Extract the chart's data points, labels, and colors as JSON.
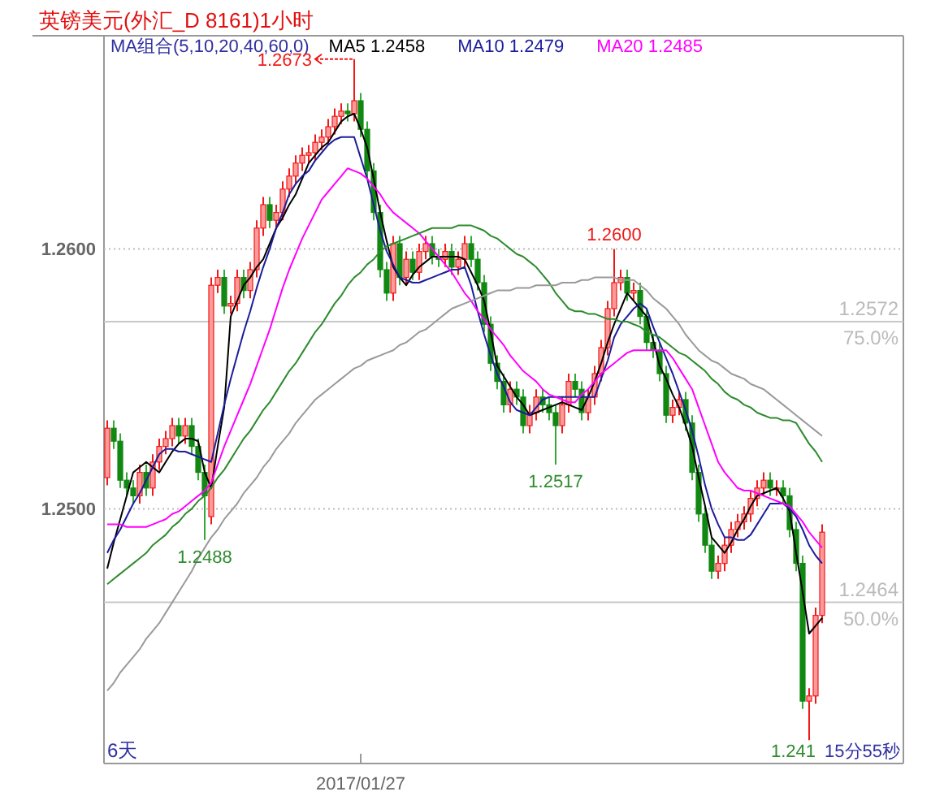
{
  "chart_data": {
    "type": "candlestick",
    "title": "英镑美元(外汇_D 8161)1小时",
    "legend_title": "MA组合(5,10,20,40,60,0)",
    "legend": "top",
    "grid": "y",
    "ylim": [
      1.2402,
      1.2682
    ],
    "yticks": [
      {
        "value": 1.26,
        "label": "1.2600"
      },
      {
        "value": 1.25,
        "label": "1.2500"
      }
    ],
    "categories": [
      null,
      null,
      null,
      null,
      null,
      null,
      null,
      null,
      null,
      null,
      null,
      null,
      null,
      null,
      null,
      null,
      null,
      null,
      null,
      null,
      null,
      null,
      null,
      null,
      null,
      null,
      null,
      null,
      null,
      null,
      null,
      null,
      null,
      null,
      null,
      null,
      null,
      null,
      null,
      "2017/01/27",
      null,
      null,
      null,
      null,
      null,
      null,
      null,
      null,
      null,
      null,
      null,
      null,
      null,
      null,
      null,
      null,
      null,
      null,
      null,
      null,
      null,
      null,
      null,
      null,
      null,
      null,
      null,
      null,
      null,
      null,
      null,
      null,
      null,
      null,
      null,
      null,
      null,
      null,
      null,
      null,
      null,
      null,
      null,
      null,
      null,
      null,
      null,
      null,
      null,
      null,
      null,
      null,
      null,
      null,
      null,
      null,
      null,
      null,
      null,
      null,
      null,
      null,
      null,
      null,
      null,
      null,
      null,
      null,
      null,
      null,
      null
    ],
    "ohlc": [
      [
        1.2512,
        1.2534,
        1.2509,
        1.2531
      ],
      [
        1.2531,
        1.2534,
        1.2523,
        1.2526
      ],
      [
        1.2526,
        1.2529,
        1.2508,
        1.2511
      ],
      [
        1.2511,
        1.2514,
        1.2505,
        1.2508
      ],
      [
        1.2508,
        1.2511,
        1.2502,
        1.2505
      ],
      [
        1.2505,
        1.2517,
        1.2502,
        1.2514
      ],
      [
        1.2514,
        1.2517,
        1.2505,
        1.2508
      ],
      [
        1.2508,
        1.2521,
        1.2505,
        1.2518
      ],
      [
        1.2518,
        1.2527,
        1.2515,
        1.2524
      ],
      [
        1.2524,
        1.253,
        1.2521,
        1.2527
      ],
      [
        1.2527,
        1.2535,
        1.2524,
        1.2532
      ],
      [
        1.2532,
        1.2535,
        1.2525,
        1.2528
      ],
      [
        1.2528,
        1.2535,
        1.2525,
        1.2532
      ],
      [
        1.2532,
        1.2535,
        1.2521,
        1.2524
      ],
      [
        1.2524,
        1.2527,
        1.2511,
        1.2514
      ],
      [
        1.2514,
        1.2517,
        1.2488,
        1.2505
      ],
      [
        1.2497,
        1.2589,
        1.2494,
        1.2586
      ],
      [
        1.2586,
        1.2592,
        1.2583,
        1.2589
      ],
      [
        1.2589,
        1.2592,
        1.2575,
        1.2578
      ],
      [
        1.2578,
        1.2582,
        1.2575,
        1.2579
      ],
      [
        1.2579,
        1.2592,
        1.2576,
        1.2589
      ],
      [
        1.2589,
        1.2592,
        1.2581,
        1.2584
      ],
      [
        1.2584,
        1.2595,
        1.2581,
        1.2592
      ],
      [
        1.2592,
        1.2611,
        1.2589,
        1.2608
      ],
      [
        1.2608,
        1.262,
        1.2605,
        1.2617
      ],
      [
        1.2617,
        1.262,
        1.2608,
        1.2611
      ],
      [
        1.2611,
        1.2617,
        1.2608,
        1.2614
      ],
      [
        1.2614,
        1.2626,
        1.2611,
        1.2623
      ],
      [
        1.2623,
        1.2631,
        1.262,
        1.2628
      ],
      [
        1.2628,
        1.2636,
        1.2625,
        1.2633
      ],
      [
        1.2633,
        1.2639,
        1.263,
        1.2636
      ],
      [
        1.2636,
        1.264,
        1.2633,
        1.2637
      ],
      [
        1.2637,
        1.2644,
        1.2634,
        1.2641
      ],
      [
        1.2641,
        1.2646,
        1.2638,
        1.2643
      ],
      [
        1.2643,
        1.265,
        1.264,
        1.2647
      ],
      [
        1.2647,
        1.2654,
        1.2644,
        1.2651
      ],
      [
        1.2651,
        1.2656,
        1.2648,
        1.2653
      ],
      [
        1.2653,
        1.2656,
        1.2649,
        1.2652
      ],
      [
        1.2652,
        1.2673,
        1.2649,
        1.2657
      ],
      [
        1.2657,
        1.266,
        1.2643,
        1.2646
      ],
      [
        1.2646,
        1.2649,
        1.2627,
        1.263
      ],
      [
        1.263,
        1.2633,
        1.2611,
        1.2614
      ],
      [
        1.2614,
        1.2617,
        1.2589,
        1.2592
      ],
      [
        1.2592,
        1.2595,
        1.258,
        1.2583
      ],
      [
        1.2583,
        1.2605,
        1.258,
        1.2602
      ],
      [
        1.2602,
        1.2605,
        1.2586,
        1.2589
      ],
      [
        1.2589,
        1.2599,
        1.2586,
        1.2596
      ],
      [
        1.2596,
        1.2599,
        1.2588,
        1.2591
      ],
      [
        1.2591,
        1.2602,
        1.2588,
        1.2599
      ],
      [
        1.2599,
        1.2605,
        1.2596,
        1.2602
      ],
      [
        1.2602,
        1.2605,
        1.2594,
        1.2597
      ],
      [
        1.2597,
        1.26,
        1.2593,
        1.2596
      ],
      [
        1.2596,
        1.2602,
        1.2593,
        1.2599
      ],
      [
        1.2599,
        1.2602,
        1.259,
        1.2593
      ],
      [
        1.2593,
        1.2599,
        1.259,
        1.2596
      ],
      [
        1.2596,
        1.2605,
        1.2593,
        1.2602
      ],
      [
        1.2602,
        1.2605,
        1.2593,
        1.2596
      ],
      [
        1.2596,
        1.2599,
        1.2584,
        1.2587
      ],
      [
        1.2587,
        1.259,
        1.2568,
        1.2571
      ],
      [
        1.2571,
        1.2574,
        1.2553,
        1.2556
      ],
      [
        1.2556,
        1.2559,
        1.2546,
        1.2549
      ],
      [
        1.2549,
        1.2552,
        1.2537,
        1.254
      ],
      [
        1.254,
        1.2549,
        1.2537,
        1.2546
      ],
      [
        1.2546,
        1.2549,
        1.254,
        1.2543
      ],
      [
        1.2543,
        1.2546,
        1.2529,
        1.2532
      ],
      [
        1.2532,
        1.254,
        1.2529,
        1.2537
      ],
      [
        1.2537,
        1.2546,
        1.2534,
        1.2543
      ],
      [
        1.2543,
        1.2546,
        1.2537,
        1.254
      ],
      [
        1.254,
        1.2543,
        1.2534,
        1.2537
      ],
      [
        1.2537,
        1.254,
        1.2517,
        1.2532
      ],
      [
        1.2532,
        1.2543,
        1.2529,
        1.254
      ],
      [
        1.254,
        1.2552,
        1.2537,
        1.2549
      ],
      [
        1.2549,
        1.2552,
        1.2543,
        1.2546
      ],
      [
        1.2546,
        1.2549,
        1.2534,
        1.2537
      ],
      [
        1.2537,
        1.2546,
        1.2534,
        1.2543
      ],
      [
        1.2543,
        1.2555,
        1.254,
        1.2552
      ],
      [
        1.2552,
        1.2565,
        1.2549,
        1.2562
      ],
      [
        1.2562,
        1.258,
        1.2559,
        1.2577
      ],
      [
        1.2577,
        1.26,
        1.2574,
        1.2587
      ],
      [
        1.2587,
        1.2592,
        1.2584,
        1.2589
      ],
      [
        1.2589,
        1.2592,
        1.258,
        1.2583
      ],
      [
        1.2583,
        1.2587,
        1.258,
        1.2584
      ],
      [
        1.2584,
        1.2587,
        1.2571,
        1.2574
      ],
      [
        1.2574,
        1.2577,
        1.2561,
        1.2564
      ],
      [
        1.2564,
        1.2567,
        1.2558,
        1.2561
      ],
      [
        1.2561,
        1.2564,
        1.2549,
        1.2552
      ],
      [
        1.2552,
        1.2555,
        1.2533,
        1.2536
      ],
      [
        1.2536,
        1.2542,
        1.2533,
        1.2539
      ],
      [
        1.2539,
        1.2545,
        1.2536,
        1.2542
      ],
      [
        1.2542,
        1.2545,
        1.253,
        1.2533
      ],
      [
        1.2533,
        1.2536,
        1.2511,
        1.2514
      ],
      [
        1.2514,
        1.2517,
        1.2495,
        1.2498
      ],
      [
        1.2498,
        1.2501,
        1.2483,
        1.2486
      ],
      [
        1.2486,
        1.2489,
        1.2473,
        1.2476
      ],
      [
        1.2476,
        1.2482,
        1.2473,
        1.2479
      ],
      [
        1.2479,
        1.2489,
        1.2476,
        1.2486
      ],
      [
        1.2486,
        1.2495,
        1.2483,
        1.2492
      ],
      [
        1.2492,
        1.2498,
        1.2489,
        1.2495
      ],
      [
        1.2495,
        1.2501,
        1.2492,
        1.2498
      ],
      [
        1.2498,
        1.2507,
        1.2495,
        1.2504
      ],
      [
        1.2504,
        1.2511,
        1.2501,
        1.2508
      ],
      [
        1.2508,
        1.2514,
        1.2505,
        1.2511
      ],
      [
        1.2511,
        1.2514,
        1.2505,
        1.2508
      ],
      [
        1.2508,
        1.2511,
        1.2505,
        1.2508
      ],
      [
        1.2508,
        1.2511,
        1.2502,
        1.2505
      ],
      [
        1.2505,
        1.2508,
        1.2489,
        1.2492
      ],
      [
        1.2492,
        1.2495,
        1.2476,
        1.2479
      ],
      [
        1.2479,
        1.2482,
        1.2423,
        1.2426
      ],
      [
        1.2426,
        1.2431,
        1.2411,
        1.2428
      ],
      [
        1.2428,
        1.2462,
        1.2425,
        1.2459
      ],
      [
        1.2459,
        1.2494,
        1.2456,
        1.2491
      ]
    ],
    "series": [
      {
        "type": "line",
        "name": "MA5 1.2458",
        "color": "#000000",
        "values": [
          1.2477,
          1.2487,
          1.2496,
          1.2505,
          1.2514,
          1.2516,
          1.2518,
          1.2516,
          1.2514,
          1.2518,
          1.2522,
          1.2525,
          1.2527,
          1.2527,
          1.2526,
          1.2514,
          1.2508,
          1.2524,
          1.2539,
          1.2574,
          1.258,
          1.2586,
          1.2589,
          1.2593,
          1.2596,
          1.2602,
          1.2608,
          1.2612,
          1.2617,
          1.2621,
          1.2627,
          1.2633,
          1.2636,
          1.2639,
          1.2641,
          1.2645,
          1.2649,
          1.2651,
          1.2652,
          1.2646,
          1.2639,
          1.2627,
          1.2614,
          1.2603,
          1.2593,
          1.2589,
          1.2586,
          1.259,
          1.2593,
          1.2595,
          1.2597,
          1.2597,
          1.2597,
          1.2597,
          1.2597,
          1.2596,
          1.2591,
          1.2586,
          1.258,
          1.2568,
          1.2555,
          1.2551,
          1.2547,
          1.2543,
          1.254,
          1.2536,
          1.2537,
          1.2538,
          1.2539,
          1.254,
          1.2541,
          1.254,
          1.2539,
          1.2538,
          1.2543,
          1.2549,
          1.2556,
          1.2564,
          1.2571,
          1.2577,
          1.2583,
          1.258,
          1.2577,
          1.2574,
          1.2565,
          1.2555,
          1.255,
          1.2544,
          1.2539,
          1.2532,
          1.2524,
          1.2512,
          1.2501,
          1.2489,
          1.2486,
          1.2483,
          1.2487,
          1.2492,
          1.2496,
          1.2501,
          1.2505,
          1.2506,
          1.2507,
          1.2508,
          1.2504,
          1.2499,
          1.2483,
          1.2468,
          1.2452,
          1.2455,
          1.2458
        ]
      },
      {
        "type": "line",
        "name": "MA10 1.2479",
        "color": "#1c1c9c",
        "values": [
          1.2483,
          1.2488,
          1.2492,
          1.2497,
          1.2502,
          1.2506,
          1.2511,
          1.2516,
          1.2521,
          1.2523,
          1.2523,
          1.2522,
          1.2522,
          1.2521,
          1.252,
          1.2519,
          1.2518,
          1.2529,
          1.254,
          1.255,
          1.2559,
          1.2568,
          1.2576,
          1.2585,
          1.2593,
          1.26,
          1.2608,
          1.2614,
          1.2621,
          1.2625,
          1.2628,
          1.263,
          1.2634,
          1.2637,
          1.264,
          1.2642,
          1.2643,
          1.2643,
          1.2643,
          1.2635,
          1.2627,
          1.2617,
          1.2607,
          1.2599,
          1.2594,
          1.2589,
          1.2588,
          1.2587,
          1.2587,
          1.2588,
          1.2589,
          1.259,
          1.2591,
          1.2592,
          1.2592,
          1.2593,
          1.2586,
          1.2576,
          1.2567,
          1.2559,
          1.2552,
          1.2547,
          1.2541,
          1.2538,
          1.2537,
          1.2536,
          1.2539,
          1.2542,
          1.2543,
          1.2543,
          1.2543,
          1.2543,
          1.2543,
          1.2543,
          1.2543,
          1.2543,
          1.255,
          1.2557,
          1.2566,
          1.2571,
          1.2574,
          1.2577,
          1.2579,
          1.2577,
          1.257,
          1.2564,
          1.2558,
          1.2552,
          1.2545,
          1.2538,
          1.253,
          1.252,
          1.2509,
          1.25,
          1.2494,
          1.2489,
          1.2489,
          1.2488,
          1.2488,
          1.249,
          1.2494,
          1.2498,
          1.2502,
          1.2502,
          1.2502,
          1.25,
          1.2497,
          1.2492,
          1.2486,
          1.2482,
          1.2479
        ]
      },
      {
        "type": "line",
        "name": "MA20 1.2485",
        "color": "#ff00ff",
        "values": [
          1.2494,
          1.2494,
          1.2494,
          1.2493,
          1.2493,
          1.2493,
          1.2493,
          1.2494,
          1.2495,
          1.2496,
          1.2498,
          1.2499,
          1.2501,
          1.2503,
          1.2505,
          1.2507,
          1.251,
          1.2517,
          1.2524,
          1.253,
          1.2536,
          1.2542,
          1.2548,
          1.2555,
          1.2562,
          1.2569,
          1.2577,
          1.2585,
          1.2592,
          1.2598,
          1.2604,
          1.2609,
          1.2614,
          1.2619,
          1.2622,
          1.2625,
          1.2628,
          1.2631,
          1.263,
          1.2629,
          1.2627,
          1.2624,
          1.2621,
          1.2617,
          1.2614,
          1.2612,
          1.261,
          1.2608,
          1.2606,
          1.2603,
          1.26,
          1.2597,
          1.2594,
          1.2591,
          1.2587,
          1.2583,
          1.258,
          1.2576,
          1.2573,
          1.2569,
          1.2566,
          1.2563,
          1.2559,
          1.2556,
          1.2553,
          1.2551,
          1.2549,
          1.2546,
          1.2544,
          1.2543,
          1.2542,
          1.2541,
          1.2541,
          1.2544,
          1.2546,
          1.2549,
          1.2552,
          1.2554,
          1.2556,
          1.2558,
          1.256,
          1.2561,
          1.2561,
          1.2561,
          1.2561,
          1.2561,
          1.2561,
          1.2558,
          1.2554,
          1.255,
          1.2546,
          1.2539,
          1.2532,
          1.2525,
          1.2518,
          1.2514,
          1.2511,
          1.2508,
          1.2507,
          1.2507,
          1.2506,
          1.2505,
          1.2504,
          1.2503,
          1.2502,
          1.2501,
          1.2498,
          1.2495,
          1.2491,
          1.2488,
          1.2485
        ]
      },
      {
        "type": "line",
        "color": "#2e8b2e",
        "values": [
          1.2471,
          1.2473,
          1.2475,
          1.2477,
          1.2479,
          1.2481,
          1.2483,
          1.2486,
          1.2488,
          1.249,
          1.2493,
          1.2495,
          1.2498,
          1.25,
          1.2503,
          1.2505,
          1.2508,
          1.2512,
          1.2515,
          1.2519,
          1.2523,
          1.2527,
          1.253,
          1.2534,
          1.2538,
          1.2541,
          1.2545,
          1.2549,
          1.2553,
          1.2556,
          1.256,
          1.2564,
          1.2568,
          1.2571,
          1.2575,
          1.2579,
          1.2582,
          1.2586,
          1.2589,
          1.2591,
          1.2594,
          1.2596,
          1.2599,
          1.2601,
          1.2602,
          1.2603,
          1.2604,
          1.2605,
          1.2606,
          1.2607,
          1.2608,
          1.2608,
          1.2608,
          1.2608,
          1.2609,
          1.2609,
          1.2609,
          1.2608,
          1.2607,
          1.2605,
          1.2604,
          1.2602,
          1.26,
          1.2598,
          1.2597,
          1.2595,
          1.2593,
          1.259,
          1.2587,
          1.2583,
          1.258,
          1.2577,
          1.2576,
          1.2576,
          1.2575,
          1.2575,
          1.2574,
          1.2573,
          1.2573,
          1.2572,
          1.2572,
          1.2571,
          1.257,
          1.2568,
          1.2567,
          1.2566,
          1.2564,
          1.2562,
          1.256,
          1.2559,
          1.2557,
          1.2555,
          1.2553,
          1.255,
          1.2548,
          1.2545,
          1.2543,
          1.2542,
          1.254,
          1.2539,
          1.2537,
          1.2536,
          1.2535,
          1.2535,
          1.2534,
          1.2534,
          1.2533,
          1.2529,
          1.2525,
          1.2522,
          1.2518
        ]
      },
      {
        "type": "line",
        "color": "#9a9a9a",
        "values": [
          1.243,
          1.2433,
          1.2437,
          1.244,
          1.2443,
          1.2446,
          1.245,
          1.2453,
          1.2456,
          1.246,
          1.2464,
          1.2468,
          1.2472,
          1.2476,
          1.2481,
          1.2485,
          1.2489,
          1.2492,
          1.2496,
          1.2499,
          1.2502,
          1.2506,
          1.2509,
          1.2512,
          1.2516,
          1.2519,
          1.2523,
          1.2526,
          1.2529,
          1.2533,
          1.2536,
          1.2539,
          1.2542,
          1.2544,
          1.2546,
          1.2548,
          1.255,
          1.2552,
          1.2554,
          1.2555,
          1.2557,
          1.2558,
          1.2559,
          1.256,
          1.2561,
          1.2563,
          1.2564,
          1.2566,
          1.2568,
          1.2569,
          1.2571,
          1.2573,
          1.2575,
          1.2577,
          1.2578,
          1.2579,
          1.258,
          1.2581,
          1.2582,
          1.2583,
          1.2584,
          1.2584,
          1.2584,
          1.2585,
          1.2585,
          1.2585,
          1.2586,
          1.2586,
          1.2586,
          1.2586,
          1.2587,
          1.2587,
          1.2587,
          1.2588,
          1.2588,
          1.2589,
          1.2589,
          1.2589,
          1.2589,
          1.2588,
          1.2588,
          1.2588,
          1.2586,
          1.2584,
          1.2581,
          1.2579,
          1.2577,
          1.2574,
          1.2571,
          1.2567,
          1.2564,
          1.2561,
          1.2559,
          1.2557,
          1.2556,
          1.2554,
          1.2552,
          1.2551,
          1.255,
          1.2548,
          1.2547,
          1.2546,
          1.2544,
          1.2542,
          1.254,
          1.2538,
          1.2536,
          1.2534,
          1.2532,
          1.253,
          1.2528
        ]
      }
    ],
    "ref_lines": [
      {
        "axis": "y",
        "value": 1.2572,
        "label": "1.2572",
        "color": "#c8c8c8"
      },
      {
        "axis": "y",
        "value": 1.2464,
        "label": "1.2464",
        "color": "#c8c8c8"
      }
    ],
    "annotations": [
      "6天",
      "15分55秒",
      "1.2673",
      "1.241",
      {
        "text": "75.0%",
        "y": 1.2572
      },
      {
        "text": "50.0%",
        "y": 1.2464
      },
      {
        "text": "1.2600",
        "y": 1.26
      },
      {
        "text": "1.2517",
        "y": 1.2517
      },
      {
        "text": "1.2488",
        "y": 1.2488
      }
    ]
  }
}
